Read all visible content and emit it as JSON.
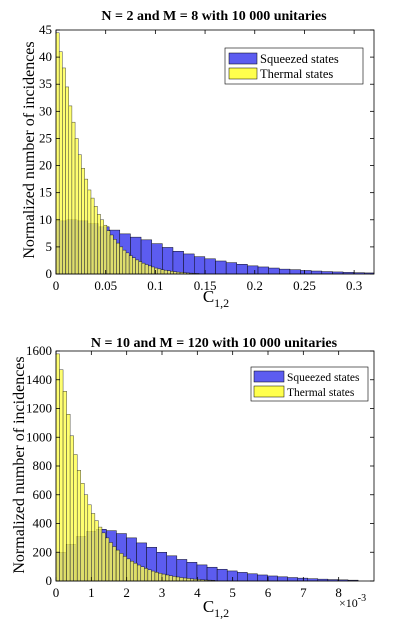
{
  "chart_data": [
    {
      "type": "bar",
      "title": "N = 2 and M = 8 with 10 000 unitaries",
      "ylabel": "Normalized number of incidences",
      "xlabel_main": "C",
      "xlabel_sub": "1,2",
      "xlim": [
        0,
        0.32
      ],
      "ylim": [
        0,
        45
      ],
      "xticks": [
        "0",
        "0.05",
        "0.1",
        "0.15",
        "0.2",
        "0.25",
        "0.3"
      ],
      "xtick_values": [
        0,
        0.05,
        0.1,
        0.15,
        0.2,
        0.25,
        0.3
      ],
      "yticks": [
        0,
        5,
        10,
        15,
        20,
        25,
        30,
        35,
        40,
        45
      ],
      "legend_position": "top-right",
      "series": [
        {
          "name": "Squeezed states",
          "color": "#5c5cf0",
          "bin_width": 0.0107,
          "values": [
            9.8,
            10.0,
            9.8,
            9.3,
            8.7,
            8.1,
            7.4,
            6.8,
            6.3,
            5.6,
            4.9,
            4.2,
            3.7,
            3.2,
            2.8,
            2.4,
            2.1,
            1.8,
            1.5,
            1.3,
            1.1,
            0.9,
            0.8,
            0.65,
            0.55,
            0.45,
            0.38,
            0.3,
            0.25,
            0.2
          ]
        },
        {
          "name": "Thermal states",
          "color": "#ffff4d",
          "bin_width": 0.0032,
          "values": [
            44.5,
            41.0,
            38.0,
            34.5,
            31.0,
            28.0,
            25.0,
            22.0,
            19.5,
            17.5,
            15.5,
            14.0,
            12.5,
            11.0,
            10.0,
            9.0,
            8.0,
            7.2,
            6.4,
            5.7,
            5.0,
            4.4,
            3.9,
            3.4,
            3.0,
            2.6,
            2.3,
            2.0,
            1.75,
            1.5,
            1.3,
            1.1,
            0.95,
            0.8,
            0.7,
            0.6,
            0.5,
            0.42,
            0.35,
            0.3,
            0.25,
            0.2,
            0.16,
            0.12,
            0.1
          ]
        }
      ]
    },
    {
      "type": "bar",
      "title": "N = 10 and M = 120 with 10 000 unitaries",
      "ylabel": "Normalized number of incidences",
      "xlabel_main": "C",
      "xlabel_sub": "1,2",
      "x_multiplier": "×10",
      "x_multiplier_exp": "-3",
      "xlim": [
        0,
        0.009
      ],
      "ylim": [
        0,
        1600
      ],
      "xticks": [
        "0",
        "1",
        "2",
        "3",
        "4",
        "5",
        "6",
        "7",
        "8"
      ],
      "xtick_values": [
        0,
        0.001,
        0.002,
        0.003,
        0.004,
        0.005,
        0.006,
        0.007,
        0.008
      ],
      "yticks": [
        0,
        200,
        400,
        600,
        800,
        1000,
        1200,
        1400,
        1600
      ],
      "legend_position": "top-right",
      "series": [
        {
          "name": "Squeezed states",
          "color": "#5c5cf0",
          "bin_width": 0.000285,
          "values": [
            200,
            255,
            310,
            345,
            360,
            350,
            330,
            300,
            265,
            235,
            200,
            175,
            150,
            130,
            112,
            96,
            82,
            70,
            60,
            50,
            42,
            35,
            29,
            24,
            20,
            16,
            13,
            10,
            8,
            6
          ]
        },
        {
          "name": "Thermal states",
          "color": "#ffff4d",
          "bin_width": 0.0001,
          "values": [
            1580,
            1470,
            1320,
            1160,
            1010,
            880,
            770,
            680,
            600,
            530,
            470,
            420,
            375,
            335,
            300,
            268,
            240,
            215,
            192,
            172,
            154,
            138,
            124,
            111,
            99,
            88,
            78,
            69,
            61,
            54,
            48,
            42,
            37,
            32,
            28,
            24,
            21,
            18,
            15,
            13,
            11,
            9,
            7,
            6,
            5
          ]
        }
      ]
    }
  ]
}
